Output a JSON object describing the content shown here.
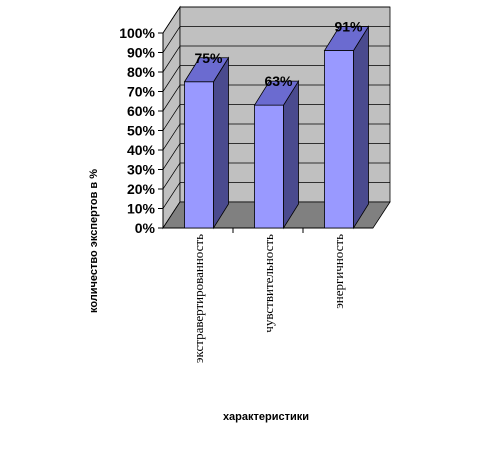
{
  "chart_data": {
    "type": "bar",
    "categories": [
      "экстравертированность",
      "чувствительность",
      "энергичность"
    ],
    "values": [
      75,
      63,
      91
    ],
    "data_labels": [
      "75%",
      "63%",
      "91%"
    ],
    "ylabel": "количество экспертов в %",
    "xlabel": "характеристики",
    "ylim": [
      0,
      100
    ],
    "yticks": [
      "0%",
      "10%",
      "20%",
      "30%",
      "40%",
      "50%",
      "60%",
      "70%",
      "80%",
      "90%",
      "100%"
    ],
    "grid": true,
    "three_d": true,
    "colors": {
      "bar_front": "#9999ff",
      "bar_side": "#4a4a8e",
      "bar_top": "#6b6bd0",
      "wall": "#c0c0c0",
      "floor": "#808080"
    }
  }
}
